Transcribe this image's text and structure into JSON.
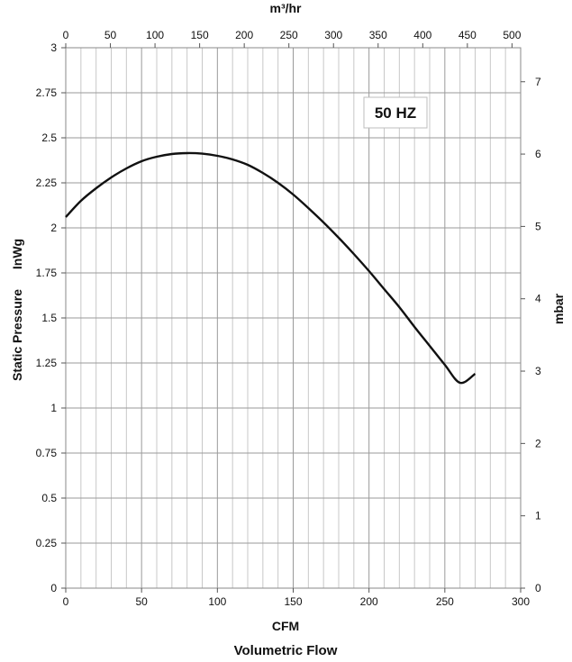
{
  "chart_data": {
    "type": "line",
    "title": "Volumetric Flow",
    "xlabel": "CFM",
    "x2label": "m³/hr",
    "ylabel": "Static Pressure",
    "ylabel_unit": "InWg",
    "y2label": "mbar",
    "annotation": "50 HZ",
    "xlim": [
      0,
      300
    ],
    "ylim": [
      0,
      3
    ],
    "x2lim": [
      0,
      509.7
    ],
    "y2lim": [
      0,
      7.47
    ],
    "grid": true,
    "x_ticks": [
      "0",
      "50",
      "100",
      "150",
      "200",
      "250",
      "300"
    ],
    "y_ticks": [
      "0",
      "0.25",
      "0.5",
      "0.75",
      "1",
      "1.25",
      "1.5",
      "1.75",
      "2",
      "2.25",
      "2.5",
      "2.75",
      "3"
    ],
    "x2_ticks": [
      "0",
      "50",
      "100",
      "150",
      "200",
      "250",
      "300",
      "350",
      "400",
      "450",
      "500"
    ],
    "y2_ticks": [
      "0",
      "1",
      "2",
      "3",
      "4",
      "5",
      "6",
      "7"
    ],
    "series": [
      {
        "x": [
          0,
          10,
          20,
          30,
          40,
          50,
          60,
          70,
          80,
          90,
          100,
          110,
          120,
          130,
          140,
          150,
          160,
          170,
          180,
          190,
          200,
          210,
          220,
          230,
          240,
          250,
          260,
          270
        ],
        "y": [
          2.06,
          2.15,
          2.22,
          2.28,
          2.33,
          2.37,
          2.395,
          2.41,
          2.415,
          2.412,
          2.4,
          2.38,
          2.35,
          2.305,
          2.25,
          2.185,
          2.11,
          2.03,
          1.945,
          1.855,
          1.76,
          1.66,
          1.56,
          1.45,
          1.345,
          1.24,
          1.14,
          1.19
        ]
      }
    ]
  }
}
